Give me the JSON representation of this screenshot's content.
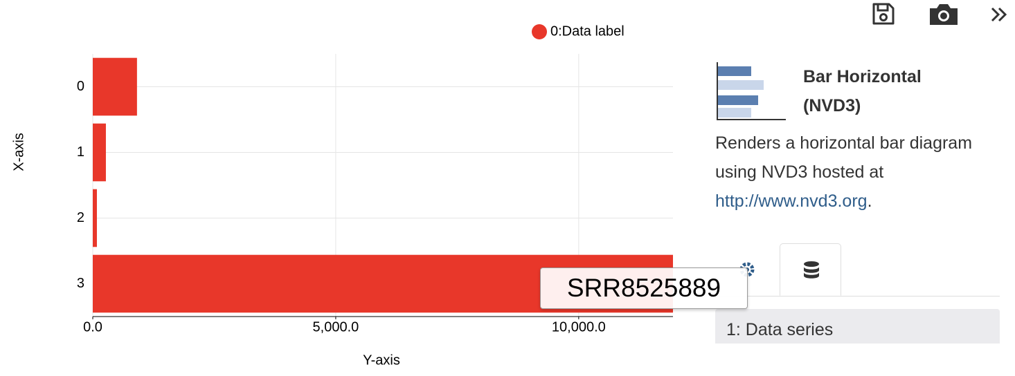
{
  "chart_data": {
    "type": "bar",
    "orientation": "horizontal",
    "x_label": "X-axis",
    "y_label": "Y-axis",
    "categories": [
      "0",
      "1",
      "2",
      "3"
    ],
    "series": [
      {
        "name": "0:Data label",
        "color": "#e8372a",
        "values": [
          910,
          270,
          85,
          11940
        ]
      }
    ],
    "ylim": [
      0,
      11940
    ],
    "yticks": [
      {
        "value": 0,
        "label": "0.0"
      },
      {
        "value": 5000,
        "label": "5,000.0"
      },
      {
        "value": 10000,
        "label": "10,000.0"
      }
    ],
    "grid": true,
    "legend": "top"
  },
  "tooltip": {
    "label": "SRR8525889"
  },
  "panel": {
    "title": "Bar Horizontal (NVD3)",
    "description": "Renders a horizontal bar diagram using NVD3 hosted at",
    "link": "http://www.nvd3.org",
    "description_end": ".",
    "tab": "1: Data series"
  }
}
